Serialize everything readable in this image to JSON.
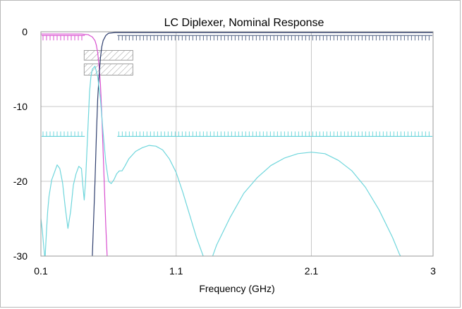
{
  "chart_data": {
    "type": "line",
    "title": "LC Diplexer, Nominal Response",
    "xlabel": "Frequency (GHz)",
    "ylabel": "",
    "xlim": [
      0.1,
      3
    ],
    "ylim": [
      -30,
      0
    ],
    "x_ticks": [
      0.1,
      1.1,
      2.1,
      3
    ],
    "x_tick_labels": [
      "0.1",
      "1.1",
      "2.1",
      "3"
    ],
    "y_ticks": [
      0,
      -10,
      -20,
      -30
    ],
    "y_tick_labels": [
      "0",
      "-10",
      "-20",
      "-30"
    ],
    "grid": true,
    "legend": "none",
    "colors": {
      "lowpass": "#d84fcf",
      "highpass": "#2f3f6e",
      "return_loss": "#6fd6dc",
      "spec_mask": "#8a8a8a",
      "grid": "#c8c8c8"
    },
    "series": [
      {
        "color": "#d84fcf",
        "x": [
          0.1,
          0.2,
          0.3,
          0.4,
          0.45,
          0.48,
          0.5,
          0.51,
          0.52,
          0.53,
          0.54,
          0.55,
          0.56,
          0.57,
          0.58,
          0.59
        ],
        "y": [
          -0.3,
          -0.3,
          -0.3,
          -0.3,
          -0.4,
          -0.7,
          -1.2,
          -1.8,
          -2.8,
          -4.5,
          -7,
          -11,
          -16,
          -21,
          -26,
          -30
        ]
      },
      {
        "color": "#2f3f6e",
        "x": [
          0.48,
          0.49,
          0.5,
          0.51,
          0.52,
          0.53,
          0.54,
          0.55,
          0.56,
          0.58,
          0.6,
          0.65,
          0.7,
          0.8,
          1.0,
          1.5,
          2.0,
          2.5,
          3.0
        ],
        "y": [
          -30,
          -25,
          -20,
          -14,
          -9,
          -6,
          -3.5,
          -2,
          -1.2,
          -0.5,
          -0.2,
          -0.1,
          -0.1,
          -0.1,
          -0.1,
          -0.1,
          -0.1,
          -0.1,
          -0.1
        ]
      },
      {
        "color": "#6fd6dc",
        "x": [
          0.1,
          0.11,
          0.12,
          0.13,
          0.14,
          0.15,
          0.16,
          0.18,
          0.2,
          0.22,
          0.24,
          0.26,
          0.28,
          0.3,
          0.32,
          0.34,
          0.36,
          0.38,
          0.4,
          0.41,
          0.42,
          0.43,
          0.44,
          0.45,
          0.46,
          0.47,
          0.48,
          0.5,
          0.52,
          0.54,
          0.56,
          0.58,
          0.6,
          0.62,
          0.64,
          0.66,
          0.68,
          0.7,
          0.72,
          0.75,
          0.8,
          0.85,
          0.9,
          0.95,
          1.0,
          1.05,
          1.1,
          1.15,
          1.2,
          1.25,
          1.3,
          1.34
        ],
        "y": [
          -25,
          -26.5,
          -28.5,
          -30.5,
          -27,
          -24,
          -22,
          -19.8,
          -18.8,
          -17.8,
          -18.3,
          -20.2,
          -23.5,
          -26.3,
          -24,
          -20.5,
          -19,
          -18,
          -18.3,
          -20.5,
          -22.5,
          -20,
          -16,
          -12,
          -8,
          -6,
          -5,
          -4.6,
          -6,
          -9,
          -13.5,
          -17.5,
          -20,
          -20.3,
          -19.8,
          -19,
          -18.6,
          -18.6,
          -18,
          -17,
          -16,
          -15.5,
          -15.2,
          -15.3,
          -15.8,
          -17,
          -18.8,
          -21.5,
          -24.5,
          -27.5,
          -30,
          -31
        ]
      },
      {
        "color": "#6fd6dc",
        "x": [
          1.35,
          1.4,
          1.5,
          1.6,
          1.7,
          1.8,
          1.9,
          2.0,
          2.1,
          2.2,
          2.3,
          2.4,
          2.5,
          2.6,
          2.7,
          2.75,
          2.82
        ],
        "y": [
          -31,
          -28.5,
          -24.8,
          -21.6,
          -19.5,
          -17.9,
          -16.9,
          -16.3,
          -16.1,
          -16.3,
          -17.2,
          -18.6,
          -20.8,
          -23.8,
          -27.5,
          -29.7,
          -32
        ]
      }
    ],
    "spec_masks": [
      {
        "color": "#d84fcf",
        "level": -0.5,
        "x_range": [
          0.1,
          0.43
        ],
        "teeth": "down"
      },
      {
        "color": "#5a6a8a",
        "level": -0.5,
        "x_range": [
          0.66,
          3.0
        ],
        "teeth": "down"
      },
      {
        "color": "#6fd6dc",
        "level": -14,
        "x_range": [
          0.1,
          0.43
        ],
        "teeth": "up"
      },
      {
        "color": "#6fd6dc",
        "level": -14,
        "x_range": [
          0.66,
          3.0
        ],
        "teeth": "up"
      }
    ],
    "hatched_boxes": [
      {
        "x_range": [
          0.42,
          0.78
        ],
        "y_range": [
          -2.5,
          -3.8
        ]
      },
      {
        "x_range": [
          0.42,
          0.78
        ],
        "y_range": [
          -4.3,
          -5.8
        ]
      }
    ]
  }
}
